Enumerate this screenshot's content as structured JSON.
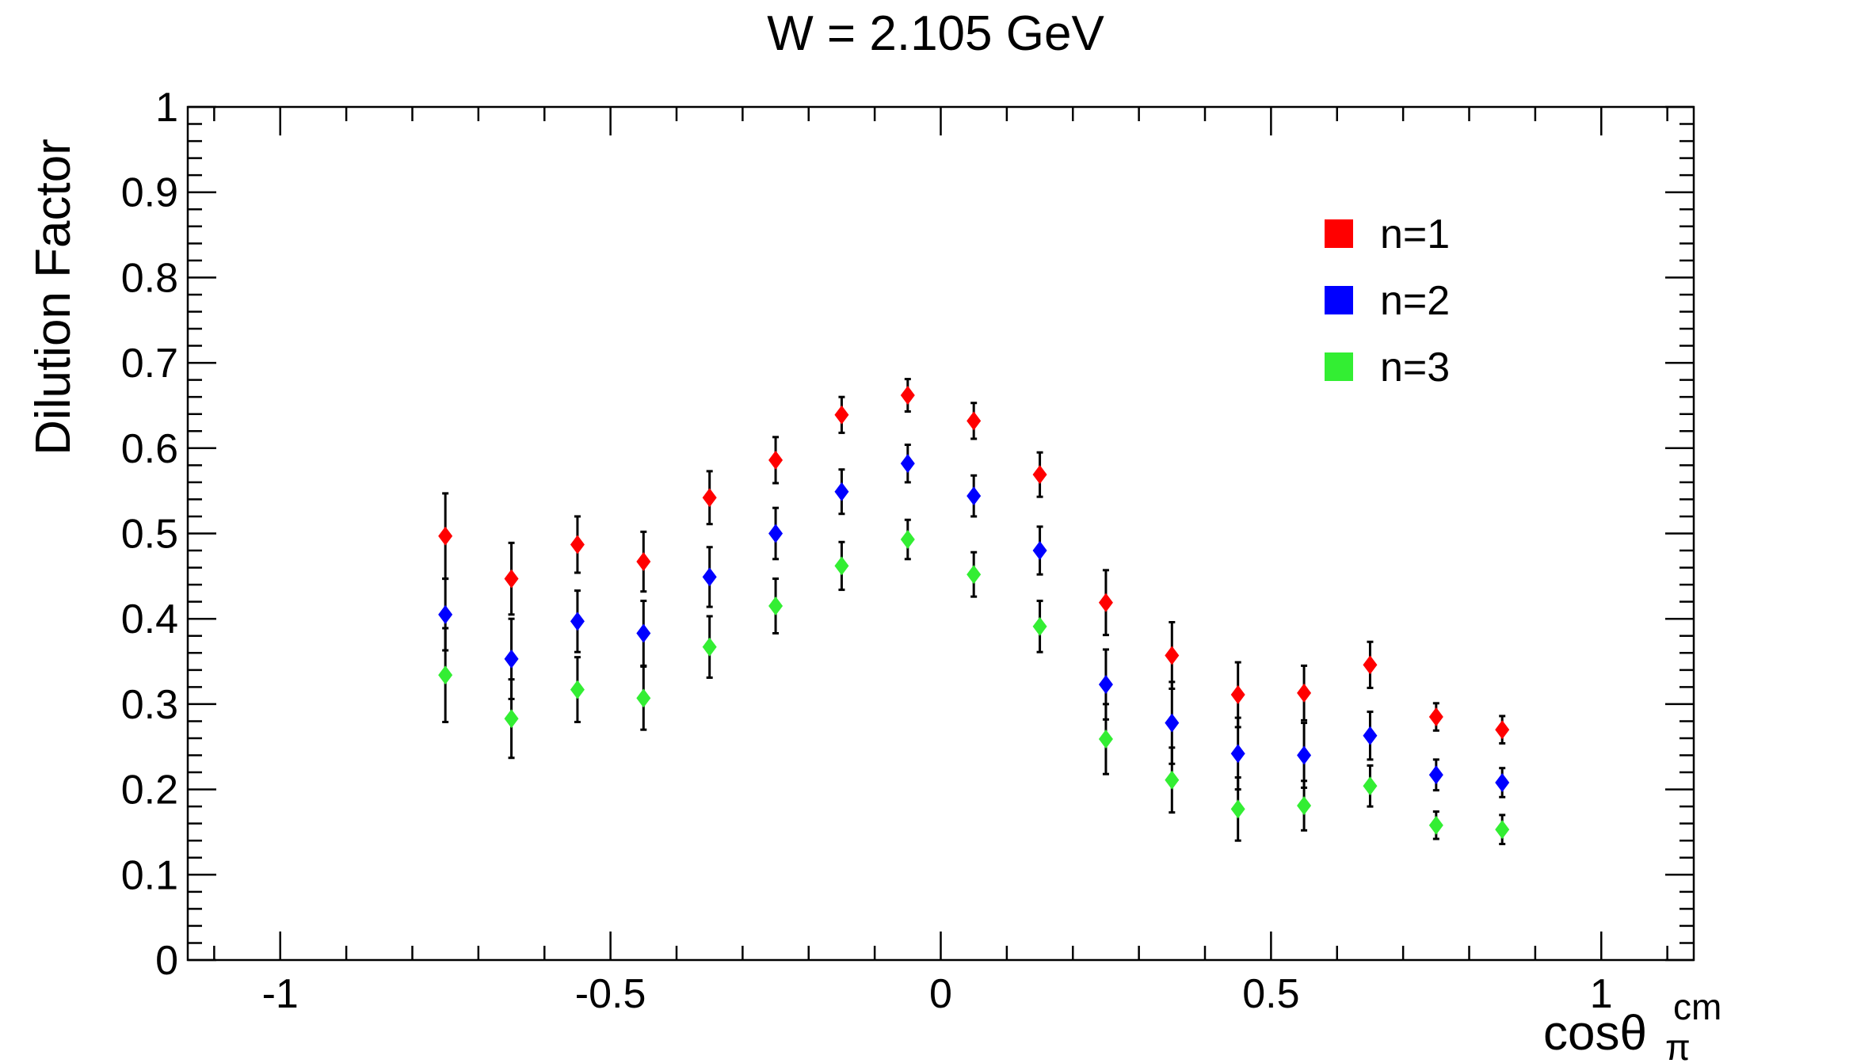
{
  "chart_data": {
    "type": "scatter",
    "title": "W = 2.105 GeV",
    "xlabel": {
      "base": "cos",
      "theta": "θ",
      "subscript": "π",
      "superscript": "cm"
    },
    "ylabel": "Dilution Factor",
    "xlim": [
      -1.14,
      1.14
    ],
    "ylim": [
      0,
      1
    ],
    "x_ticks": [
      -1,
      -0.5,
      0,
      0.5,
      1
    ],
    "x_tick_labels": [
      "-1",
      "-0.5",
      "0",
      "0.5",
      "1"
    ],
    "y_ticks": [
      0,
      0.1,
      0.2,
      0.3,
      0.4,
      0.5,
      0.6,
      0.7,
      0.8,
      0.9,
      1
    ],
    "y_tick_labels": [
      "0",
      "0.1",
      "0.2",
      "0.3",
      "0.4",
      "0.5",
      "0.6",
      "0.7",
      "0.8",
      "0.9",
      "1"
    ],
    "grid": false,
    "legend_position": "top-right",
    "x": [
      -0.75,
      -0.65,
      -0.55,
      -0.45,
      -0.35,
      -0.25,
      -0.15,
      -0.05,
      0.05,
      0.15,
      0.25,
      0.35,
      0.45,
      0.55,
      0.65,
      0.75,
      0.85
    ],
    "series": [
      {
        "name": "n=1",
        "color": "#ff0000",
        "values": [
          0.497,
          0.447,
          0.487,
          0.467,
          0.542,
          0.586,
          0.639,
          0.662,
          0.632,
          0.569,
          0.419,
          0.357,
          0.311,
          0.313,
          0.346,
          0.285,
          0.27
        ],
        "errors": [
          0.05,
          0.042,
          0.033,
          0.035,
          0.031,
          0.027,
          0.021,
          0.019,
          0.021,
          0.026,
          0.038,
          0.039,
          0.038,
          0.032,
          0.027,
          0.016,
          0.016
        ]
      },
      {
        "name": "n=2",
        "color": "#0000ff",
        "values": [
          0.405,
          0.353,
          0.397,
          0.383,
          0.449,
          0.5,
          0.549,
          0.582,
          0.544,
          0.48,
          0.323,
          0.278,
          0.242,
          0.24,
          0.263,
          0.217,
          0.208
        ],
        "errors": [
          0.042,
          0.047,
          0.036,
          0.038,
          0.035,
          0.03,
          0.026,
          0.022,
          0.024,
          0.028,
          0.041,
          0.048,
          0.042,
          0.038,
          0.028,
          0.018,
          0.017
        ]
      },
      {
        "name": "n=3",
        "color": "#33ee33",
        "values": [
          0.334,
          0.283,
          0.317,
          0.307,
          0.367,
          0.415,
          0.462,
          0.493,
          0.452,
          0.391,
          0.259,
          0.211,
          0.177,
          0.181,
          0.204,
          0.158,
          0.153
        ],
        "errors": [
          0.055,
          0.046,
          0.038,
          0.037,
          0.036,
          0.032,
          0.028,
          0.023,
          0.026,
          0.03,
          0.041,
          0.038,
          0.037,
          0.029,
          0.024,
          0.016,
          0.017
        ]
      }
    ]
  }
}
